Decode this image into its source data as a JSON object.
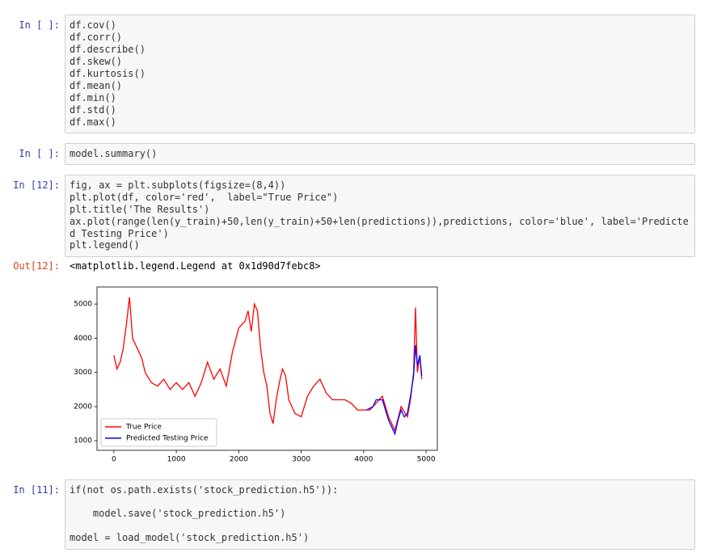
{
  "cells": [
    {
      "prompt": "In [ ]:",
      "lines": [
        "df.cov()",
        "df.corr()",
        "df.describe()",
        "df.skew()",
        "df.kurtosis()",
        "df.mean()",
        "df.min()",
        "df.std()",
        "df.max()"
      ]
    },
    {
      "prompt": "In [ ]:",
      "lines": [
        "model.summary()"
      ]
    },
    {
      "prompt": "In [12]:",
      "lines": [
        "fig, ax = plt.subplots(figsize=(8,4))",
        "plt.plot(df, color='red',  label=\"True Price\")",
        "plt.title('The Results')",
        "ax.plot(range(len(y_train)+50,len(y_train)+50+len(predictions)),predictions, color='blue', label='Predicted Testing Price')",
        "plt.legend()"
      ]
    },
    {
      "prompt": "In [11]:",
      "lines": [
        "if(not os.path.exists('stock_prediction.h5')):",
        "",
        "    model.save('stock_prediction.h5')",
        "",
        "model = load_model('stock_prediction.h5')"
      ]
    }
  ],
  "output": {
    "prompt": "Out[12]:",
    "text": "<matplotlib.legend.Legend at 0x1d90d7febc8>"
  },
  "chart_data": {
    "type": "line",
    "legend": "lower left",
    "xlim": [
      -270,
      5180
    ],
    "xticks": [
      0,
      1000,
      2000,
      3000,
      4000,
      5000
    ],
    "ylim": [
      720,
      5500
    ],
    "yticks": [
      1000,
      2000,
      3000,
      4000,
      5000
    ],
    "series": [
      {
        "name": "True Price",
        "color": "#ff0000",
        "x": [
          0,
          50,
          100,
          150,
          200,
          250,
          300,
          350,
          400,
          450,
          500,
          600,
          700,
          800,
          900,
          1000,
          1100,
          1200,
          1300,
          1400,
          1500,
          1600,
          1700,
          1800,
          1900,
          2000,
          2100,
          2150,
          2200,
          2250,
          2300,
          2350,
          2400,
          2450,
          2500,
          2550,
          2600,
          2650,
          2700,
          2750,
          2800,
          2900,
          3000,
          3100,
          3200,
          3300,
          3400,
          3500,
          3600,
          3700,
          3800,
          3900,
          4000,
          4100,
          4200,
          4300,
          4400,
          4500,
          4600,
          4700,
          4750,
          4800,
          4830,
          4860,
          4900,
          4930
        ],
        "values": [
          3500,
          3100,
          3300,
          3700,
          4400,
          5200,
          4000,
          3800,
          3600,
          3400,
          3000,
          2700,
          2600,
          2800,
          2500,
          2700,
          2500,
          2700,
          2300,
          2700,
          3300,
          2800,
          3100,
          2600,
          3600,
          4300,
          4500,
          4800,
          4200,
          5000,
          4800,
          3700,
          3000,
          2600,
          1800,
          1500,
          2200,
          2700,
          3100,
          2900,
          2200,
          1800,
          1700,
          2300,
          2600,
          2800,
          2400,
          2200,
          2200,
          2200,
          2100,
          1900,
          1900,
          1900,
          2100,
          2300,
          1700,
          1300,
          2000,
          1700,
          2200,
          3000,
          4900,
          3000,
          3500,
          2800
        ]
      },
      {
        "name": "Predicted Testing Price",
        "color": "#0000ff",
        "x": [
          4050,
          4150,
          4200,
          4300,
          4400,
          4450,
          4500,
          4550,
          4600,
          4650,
          4700,
          4750,
          4800,
          4830,
          4860,
          4900,
          4930
        ],
        "values": [
          1900,
          2000,
          2200,
          2200,
          1600,
          1400,
          1200,
          1600,
          1900,
          1700,
          1800,
          2300,
          2900,
          3800,
          3200,
          3500,
          2900
        ]
      }
    ]
  }
}
